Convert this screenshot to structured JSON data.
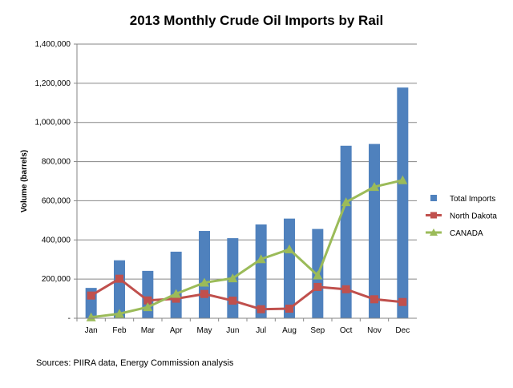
{
  "chart_data": {
    "type": "bar+line",
    "title": "2013 Monthly Crude Oil Imports by Rail",
    "ylabel": "Volume (barrels)",
    "xlabel": "",
    "ylim": [
      0,
      1400000
    ],
    "yticks": [
      "-",
      "200,000",
      "400,000",
      "600,000",
      "800,000",
      "1,000,000",
      "1,200,000",
      "1,400,000"
    ],
    "grid": true,
    "legend": "right",
    "categories": [
      "Jan",
      "Feb",
      "Mar",
      "Apr",
      "May",
      "Jun",
      "Jul",
      "Aug",
      "Sep",
      "Oct",
      "Nov",
      "Dec"
    ],
    "series": [
      {
        "name": "Total Imports",
        "kind": "bar",
        "color": "#4F81BD",
        "values": [
          155000,
          296000,
          242000,
          340000,
          446000,
          409000,
          479000,
          509000,
          456000,
          881000,
          890000,
          1178000
        ]
      },
      {
        "name": "North Dakota",
        "kind": "line",
        "marker": "square",
        "color": "#C0504D",
        "values": [
          116000,
          202000,
          91000,
          100000,
          124000,
          90000,
          46000,
          49000,
          160000,
          148000,
          97000,
          83000
        ]
      },
      {
        "name": "CANADA",
        "kind": "line",
        "marker": "triangle",
        "color": "#9BBB59",
        "values": [
          5000,
          23000,
          57000,
          125000,
          182000,
          204000,
          302000,
          352000,
          219000,
          593000,
          671000,
          705000
        ]
      }
    ],
    "annotation": "Sources:  PIIRA data, Energy Commission analysis"
  }
}
